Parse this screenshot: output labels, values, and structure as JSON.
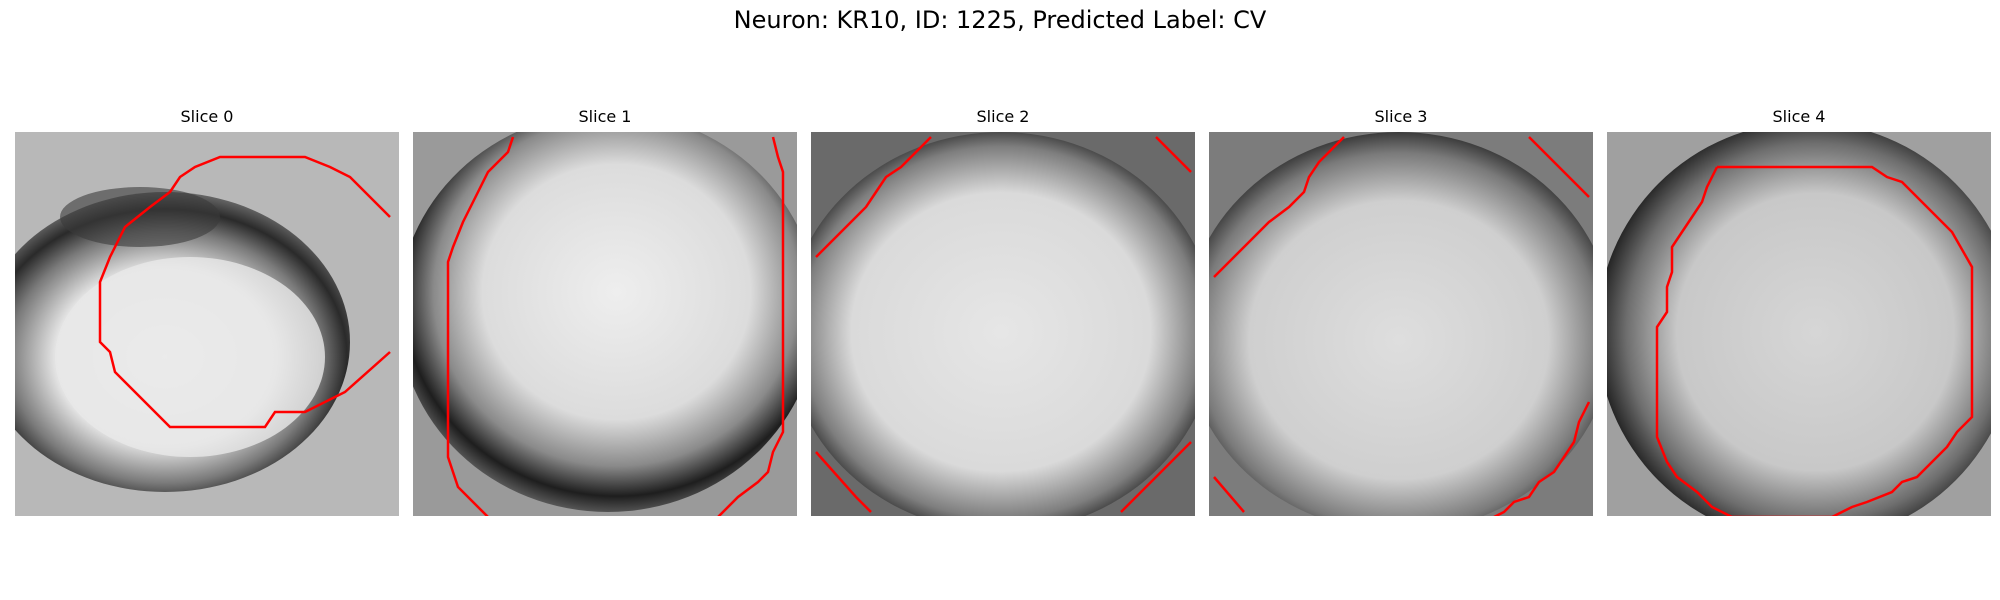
{
  "title": "Neuron: KR10, ID: 1225, Predicted Label: CV",
  "contour_color": "#ff0000",
  "slices": [
    {
      "label": "Slice 0"
    },
    {
      "label": "Slice 1"
    },
    {
      "label": "Slice 2"
    },
    {
      "label": "Slice 3"
    },
    {
      "label": "Slice 4"
    }
  ]
}
